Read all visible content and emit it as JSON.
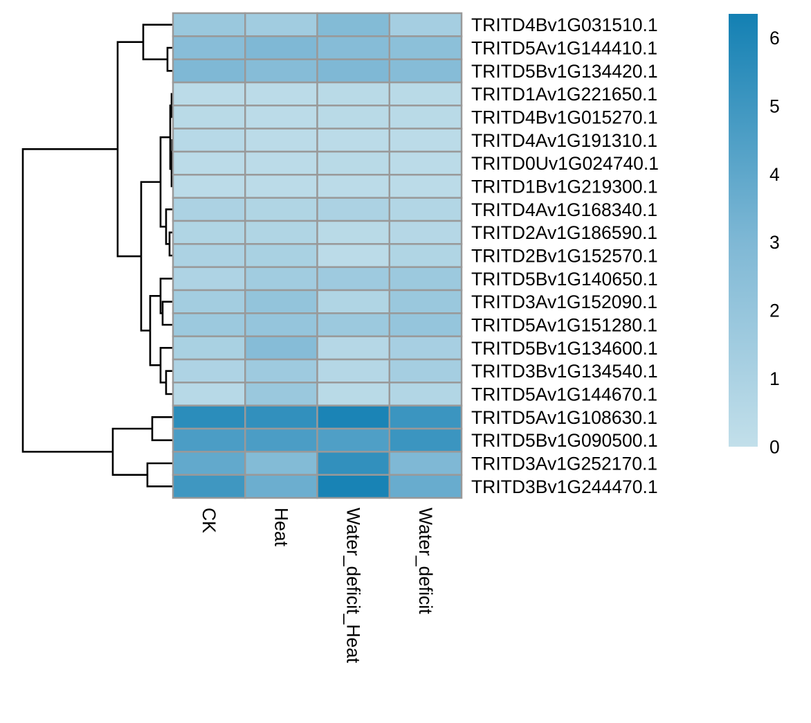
{
  "chart_data": {
    "type": "heatmap",
    "title": "",
    "columns": [
      "CK",
      "Heat",
      "Water_deficit_Heat",
      "Water_deficit"
    ],
    "rows": [
      "TRITD4Bv1G031510.1",
      "TRITD5Av1G144410.1",
      "TRITD5Bv1G134420.1",
      "TRITD1Av1G221650.1",
      "TRITD4Bv1G015270.1",
      "TRITD4Av1G191310.1",
      "TRITD0Uv1G024740.1",
      "TRITD1Bv1G219300.1",
      "TRITD4Av1G168340.1",
      "TRITD2Av1G186590.1",
      "TRITD2Bv1G152570.1",
      "TRITD5Bv1G140650.1",
      "TRITD3Av1G152090.1",
      "TRITD5Av1G151280.1",
      "TRITD5Bv1G134600.1",
      "TRITD3Bv1G134540.1",
      "TRITD5Av1G144670.1",
      "TRITD5Av1G108630.1",
      "TRITD5Bv1G090500.1",
      "TRITD3Av1G252170.1",
      "TRITD3Bv1G244470.1"
    ],
    "values": [
      [
        1.8,
        1.5,
        2.8,
        1.3
      ],
      [
        2.6,
        3.0,
        2.7,
        2.4
      ],
      [
        3.0,
        2.7,
        3.0,
        2.7
      ],
      [
        0.3,
        0.3,
        0.4,
        0.4
      ],
      [
        0.4,
        0.3,
        0.4,
        0.4
      ],
      [
        0.5,
        0.3,
        0.3,
        0.3
      ],
      [
        0.3,
        0.3,
        0.4,
        0.3
      ],
      [
        0.3,
        0.3,
        0.3,
        0.3
      ],
      [
        1.0,
        0.8,
        1.0,
        0.7
      ],
      [
        0.8,
        0.8,
        0.4,
        0.6
      ],
      [
        1.0,
        1.1,
        0.3,
        0.8
      ],
      [
        0.9,
        1.5,
        1.6,
        1.7
      ],
      [
        1.4,
        2.1,
        0.8,
        1.8
      ],
      [
        1.7,
        2.0,
        1.7,
        2.0
      ],
      [
        1.1,
        2.7,
        0.6,
        1.2
      ],
      [
        0.9,
        1.6,
        0.6,
        1.3
      ],
      [
        0.5,
        1.8,
        0.4,
        0.7
      ],
      [
        5.6,
        5.4,
        6.1,
        5.1
      ],
      [
        4.6,
        4.6,
        4.5,
        5.1
      ],
      [
        3.9,
        2.8,
        5.4,
        3.0
      ],
      [
        5.0,
        3.6,
        6.2,
        3.7
      ]
    ],
    "color_scale": {
      "range": [
        0,
        6.35
      ],
      "ticks": [
        "0",
        "1",
        "2",
        "3",
        "4",
        "5",
        "6"
      ],
      "colors": [
        "#c2dfea",
        "#7fb8d5",
        "#1380b3"
      ]
    },
    "cell_border_color": "#999999",
    "row_dendrogram": true,
    "column_dendrogram": false
  }
}
